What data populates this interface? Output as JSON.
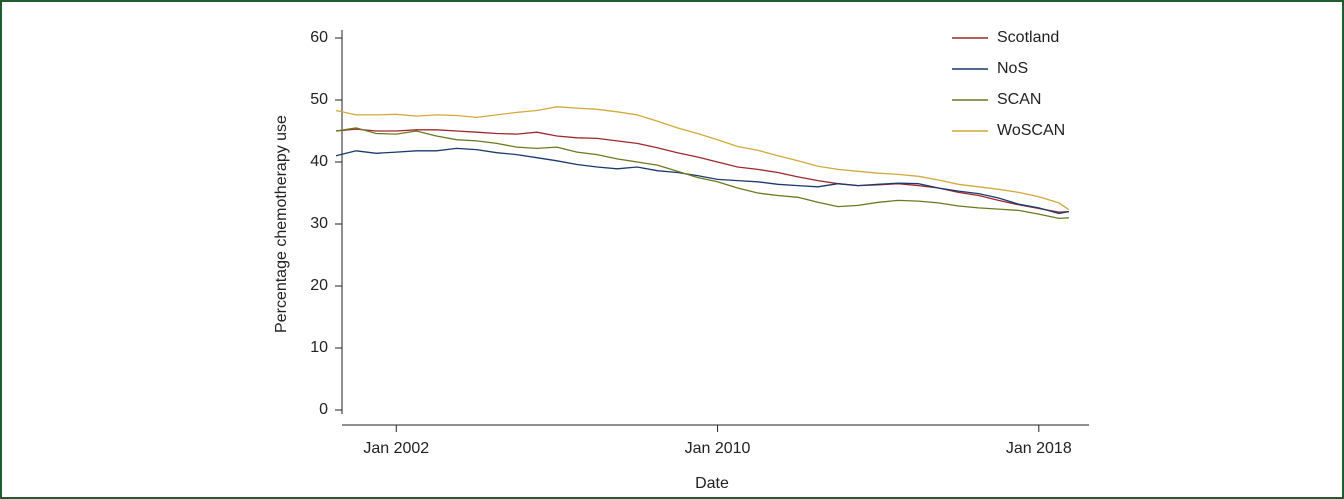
{
  "chart_data": {
    "type": "line",
    "x_label": "Date",
    "y_label": "Percentage chemotherapy use",
    "x": [
      "2000-07",
      "2001-01",
      "2001-07",
      "2002-01",
      "2002-07",
      "2003-01",
      "2003-07",
      "2004-01",
      "2004-07",
      "2005-01",
      "2005-07",
      "2006-01",
      "2006-07",
      "2007-01",
      "2007-07",
      "2008-01",
      "2008-07",
      "2009-01",
      "2009-07",
      "2010-01",
      "2010-07",
      "2011-01",
      "2011-07",
      "2012-01",
      "2012-07",
      "2013-01",
      "2013-07",
      "2014-01",
      "2014-07",
      "2015-01",
      "2015-07",
      "2016-01",
      "2016-07",
      "2017-01",
      "2017-07",
      "2018-01",
      "2018-07",
      "2018-10"
    ],
    "xlim": [
      "2000-04",
      "2019-04"
    ],
    "xticks": [
      {
        "value": "2002-01",
        "label": "Jan 2002"
      },
      {
        "value": "2010-01",
        "label": "Jan 2010"
      },
      {
        "value": "2018-01",
        "label": "Jan 2018"
      }
    ],
    "ylim": [
      0,
      60
    ],
    "yticks": [
      0,
      10,
      20,
      30,
      40,
      50,
      60
    ],
    "legend": "top-right",
    "series": [
      {
        "name": "Scotland",
        "color": "#a0282d",
        "values": [
          45,
          45.3,
          45,
          45,
          45.2,
          45.2,
          45,
          44.8,
          44.6,
          44.5,
          44.8,
          44.2,
          43.9,
          43.8,
          43.4,
          43,
          42.3,
          41.5,
          40.8,
          40,
          39.2,
          38.8,
          38.3,
          37.6,
          37,
          36.5,
          36.2,
          36.3,
          36.5,
          36.2,
          35.8,
          35.1,
          34.6,
          33.8,
          33.1,
          32.5,
          31.9,
          32
        ]
      },
      {
        "name": "NoS",
        "color": "#1a3a6e",
        "values": [
          41,
          41.8,
          41.4,
          41.6,
          41.8,
          41.8,
          42.2,
          42,
          41.5,
          41.2,
          40.7,
          40.2,
          39.6,
          39.2,
          38.9,
          39.2,
          38.6,
          38.3,
          37.8,
          37.2,
          37,
          36.8,
          36.4,
          36.2,
          36,
          36.5,
          36.2,
          36.4,
          36.6,
          36.5,
          35.8,
          35.3,
          34.9,
          34.2,
          33.2,
          32.6,
          31.7,
          32
        ]
      },
      {
        "name": "SCAN",
        "color": "#6b7a1f",
        "values": [
          45,
          45.5,
          44.6,
          44.5,
          45,
          44.2,
          43.6,
          43.4,
          43,
          42.4,
          42.2,
          42.4,
          41.6,
          41.2,
          40.5,
          40,
          39.5,
          38.5,
          37.5,
          36.8,
          35.8,
          35,
          34.6,
          34.3,
          33.5,
          32.8,
          33,
          33.5,
          33.8,
          33.7,
          33.4,
          32.9,
          32.6,
          32.4,
          32.2,
          31.6,
          30.9,
          31
        ]
      },
      {
        "name": "WoSCAN",
        "color": "#d4a93c",
        "values": [
          48.3,
          47.6,
          47.6,
          47.7,
          47.4,
          47.6,
          47.5,
          47.2,
          47.6,
          48,
          48.3,
          48.9,
          48.7,
          48.5,
          48.1,
          47.6,
          46.6,
          45.5,
          44.6,
          43.6,
          42.5,
          41.9,
          41,
          40.2,
          39.3,
          38.8,
          38.5,
          38.2,
          38,
          37.7,
          37.1,
          36.4,
          36,
          35.6,
          35.1,
          34.4,
          33.4,
          32.3
        ]
      }
    ]
  }
}
